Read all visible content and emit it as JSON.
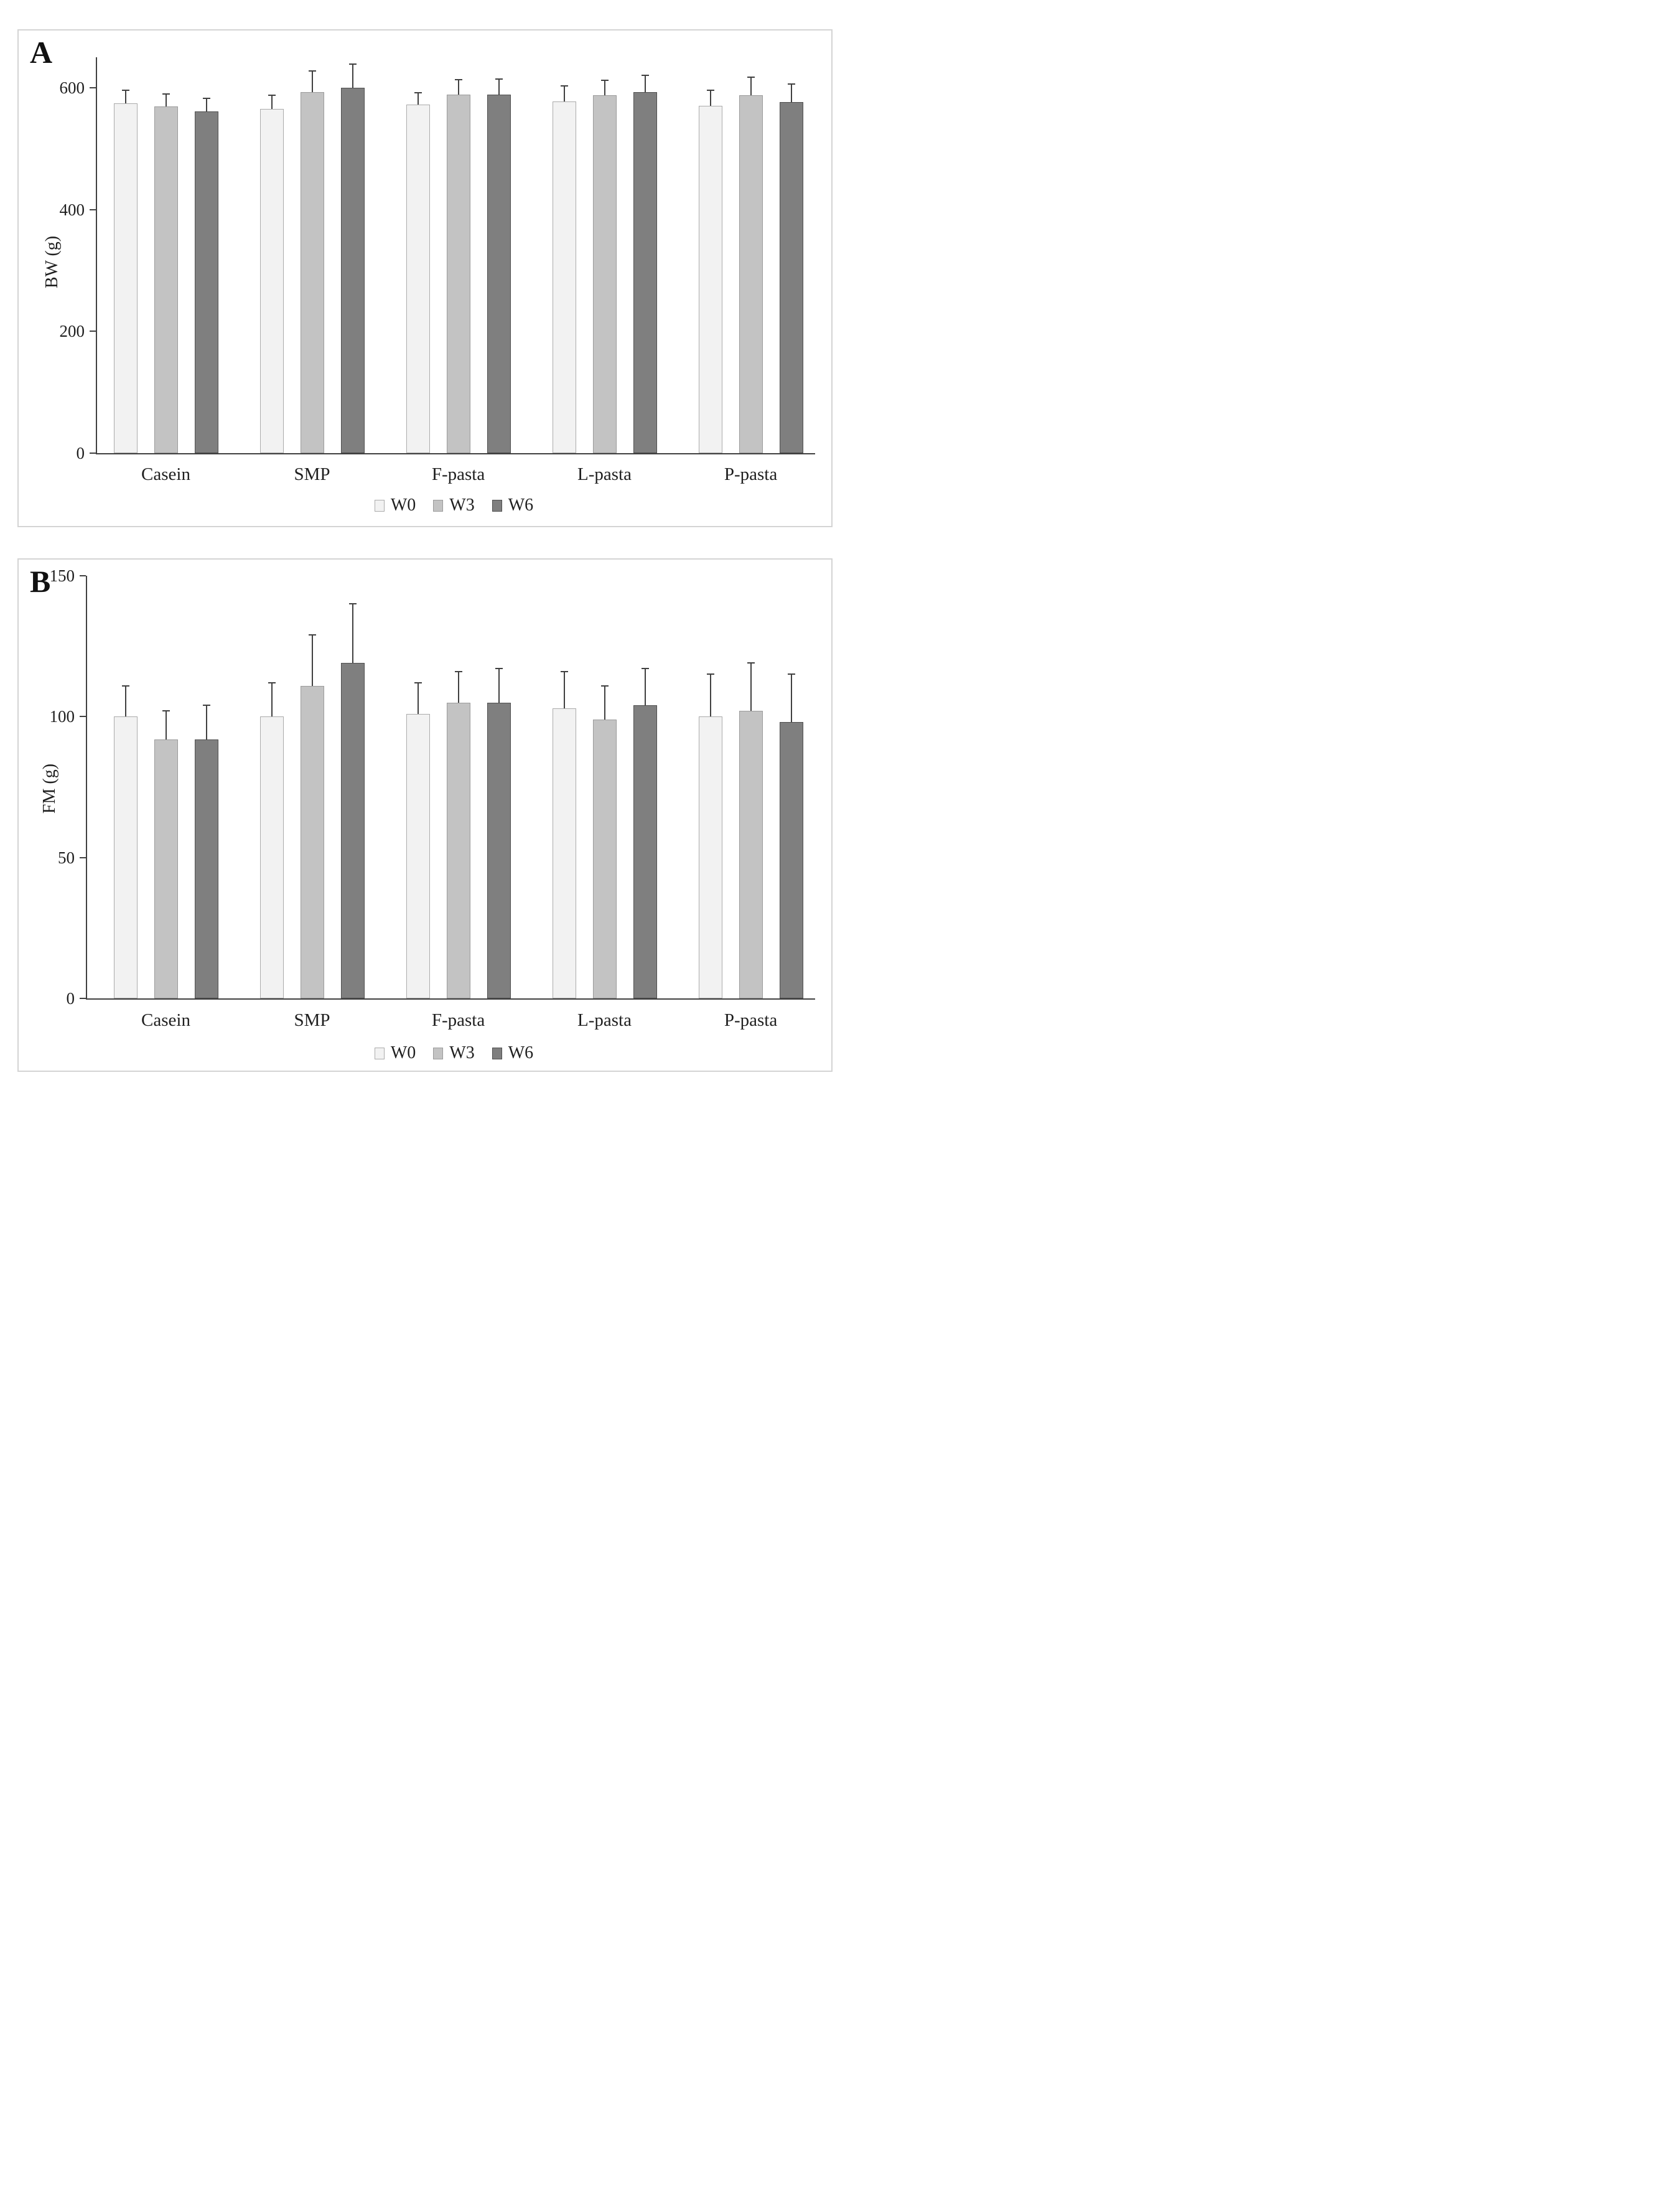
{
  "figure": {
    "description_visible_text_only": "Two-panel grouped bar figure",
    "panels": [
      {
        "label": "A"
      },
      {
        "label": "B"
      }
    ]
  },
  "legend": {
    "items": [
      "W0",
      "W3",
      "W6"
    ]
  },
  "series_styles": {
    "W0": {
      "fill": "#f2f2f2",
      "stroke": "#ababab"
    },
    "W3": {
      "fill": "#c3c3c3",
      "stroke": "#9b9b9b"
    },
    "W6": {
      "fill": "#7f7f7f",
      "stroke": "#4f4f4f"
    }
  },
  "axis_color": "#404040",
  "chart_data": [
    {
      "type": "bar",
      "panel_label": "A",
      "title": "",
      "xlabel": "",
      "ylabel": "BW (g)",
      "ylim": [
        0,
        650
      ],
      "yticks": [
        0,
        200,
        400,
        600
      ],
      "grid": false,
      "legend_position": "bottom",
      "error_bars": "plus-direction, caps",
      "categories": [
        "Casein",
        "SMP",
        "F-pasta",
        "L-pasta",
        "P-pasta"
      ],
      "series": [
        {
          "name": "W0",
          "values": [
            574,
            565,
            572,
            577,
            570
          ],
          "errors": [
            22,
            23,
            20,
            26,
            26
          ]
        },
        {
          "name": "W3",
          "values": [
            569,
            593,
            589,
            588,
            588
          ],
          "errors": [
            21,
            35,
            24,
            24,
            29
          ]
        },
        {
          "name": "W6",
          "values": [
            561,
            600,
            589,
            593,
            576
          ],
          "errors": [
            22,
            39,
            25,
            27,
            30
          ]
        }
      ]
    },
    {
      "type": "bar",
      "panel_label": "B",
      "title": "",
      "xlabel": "",
      "ylabel": "FM (g)",
      "ylim": [
        0,
        150
      ],
      "yticks": [
        0,
        50,
        100,
        150
      ],
      "grid": false,
      "legend_position": "bottom",
      "error_bars": "plus-direction, caps",
      "categories": [
        "Casein",
        "SMP",
        "F-pasta",
        "L-pasta",
        "P-pasta"
      ],
      "series": [
        {
          "name": "W0",
          "values": [
            100,
            100,
            101,
            103,
            100
          ],
          "errors": [
            11,
            12,
            11,
            13,
            15
          ]
        },
        {
          "name": "W3",
          "values": [
            92,
            111,
            105,
            99,
            102
          ],
          "errors": [
            10,
            18,
            11,
            12,
            17
          ]
        },
        {
          "name": "W6",
          "values": [
            92,
            119,
            105,
            104,
            98
          ],
          "errors": [
            12,
            21,
            12,
            13,
            17
          ]
        }
      ]
    }
  ]
}
